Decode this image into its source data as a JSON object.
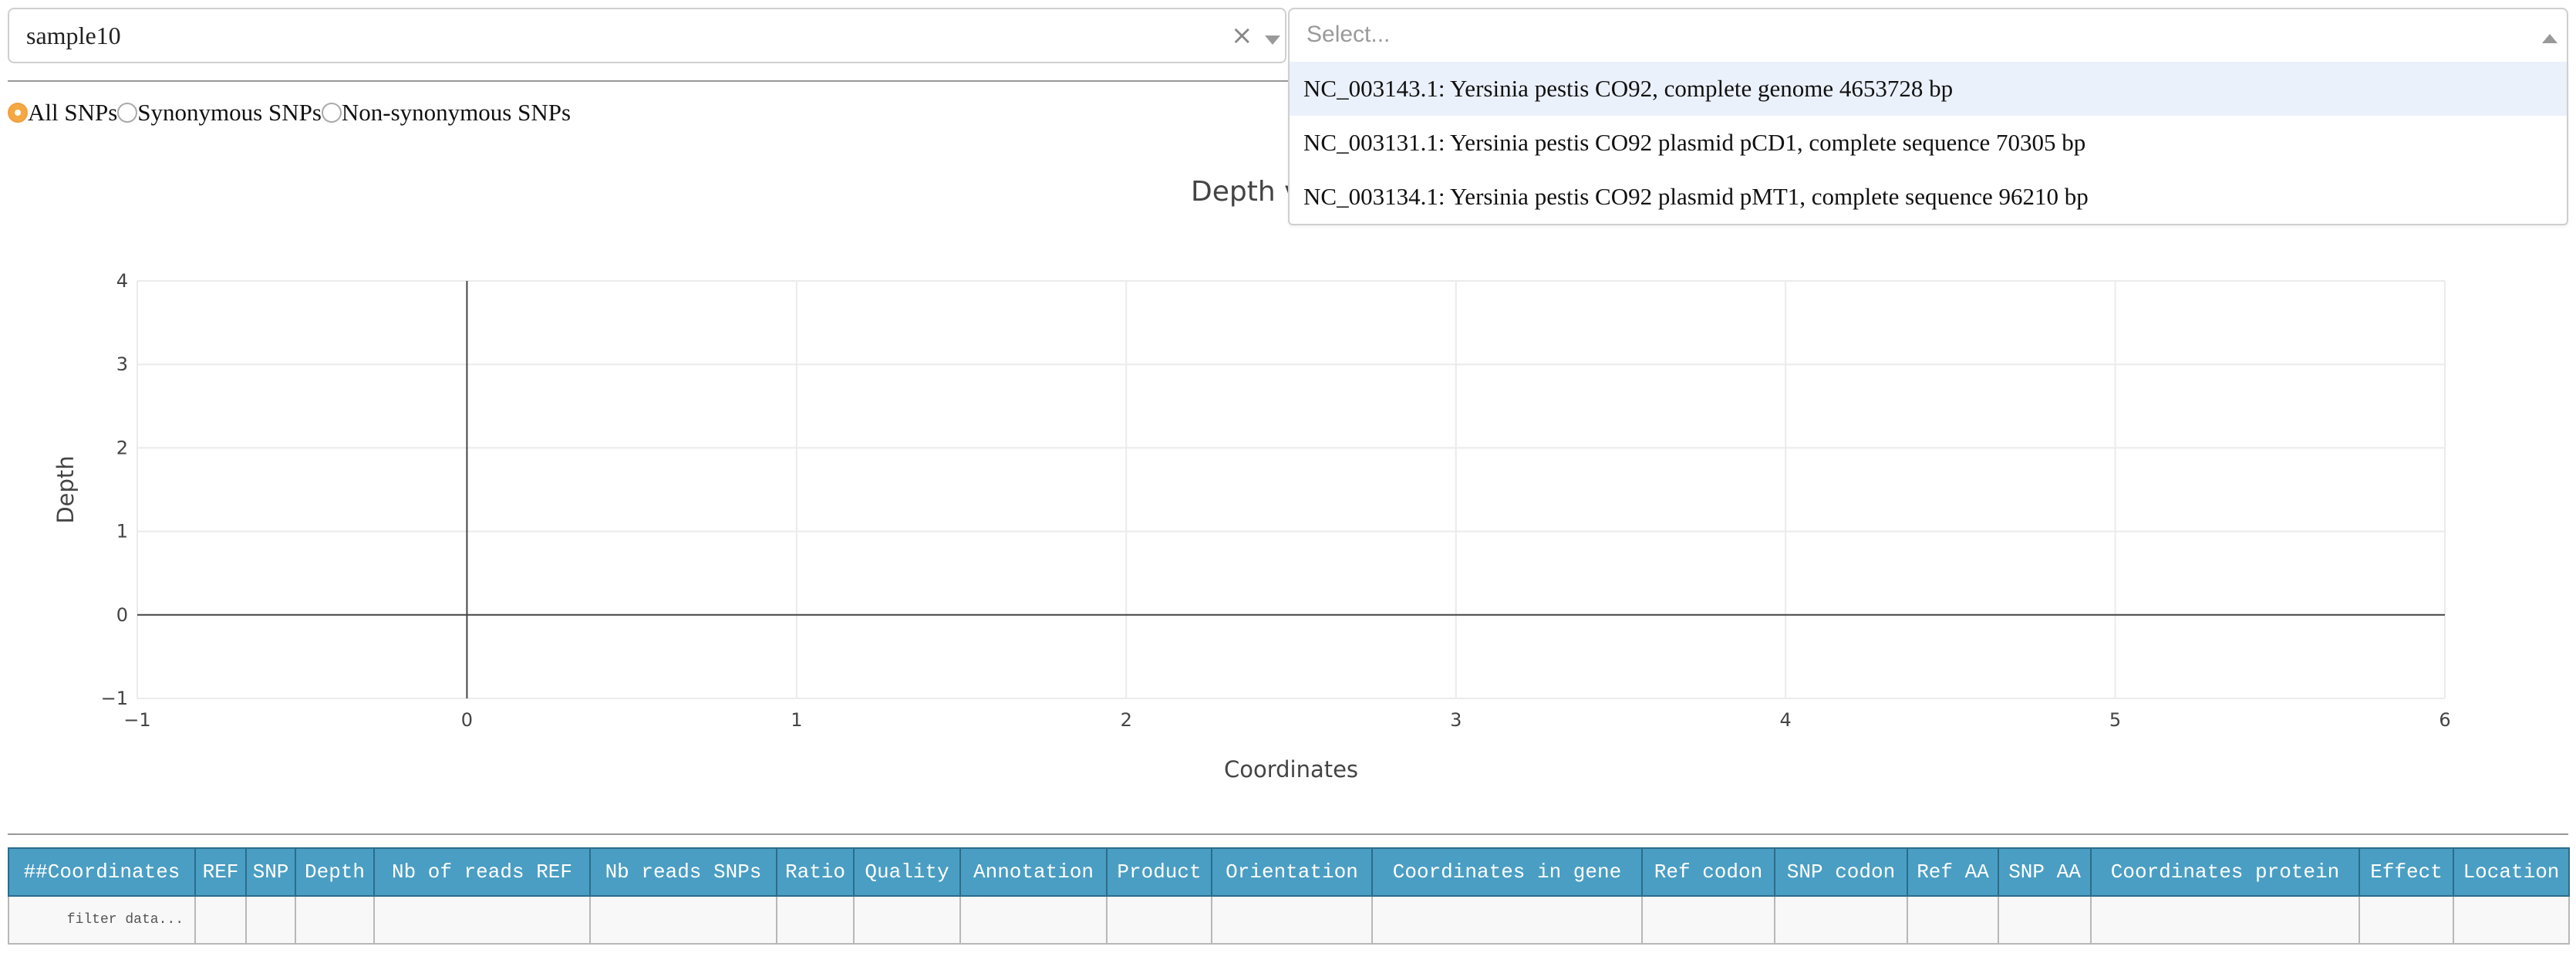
{
  "sample_select": {
    "value": "sample10",
    "clear_icon": "×",
    "caret_icon": "chevron-down-icon"
  },
  "genome_select": {
    "placeholder": "Select...",
    "caret_icon": "chevron-up-icon",
    "options": [
      {
        "label": "NC_003143.1: Yersinia pestis CO92, complete genome 4653728 bp",
        "highlighted": true
      },
      {
        "label": "NC_003131.1: Yersinia pestis CO92 plasmid pCD1, complete sequence 70305 bp",
        "highlighted": false
      },
      {
        "label": "NC_003134.1: Yersinia pestis CO92 plasmid pMT1, complete sequence 96210 bp",
        "highlighted": false
      }
    ]
  },
  "snp_filter": {
    "options": [
      {
        "label": "All SNPs",
        "checked": true
      },
      {
        "label": "Synonymous SNPs",
        "checked": false
      },
      {
        "label": "Non-synonymous SNPs",
        "checked": false
      }
    ]
  },
  "chart_data": {
    "type": "scatter",
    "title": "Depth v",
    "xlabel": "Coordinates",
    "ylabel": "Depth",
    "xlim": [
      -1,
      6
    ],
    "ylim": [
      -1,
      4
    ],
    "x_ticks": [
      "−1",
      "0",
      "1",
      "2",
      "3",
      "4",
      "5",
      "6"
    ],
    "y_ticks": [
      "−1",
      "0",
      "1",
      "2",
      "3",
      "4"
    ],
    "grid": true,
    "series": []
  },
  "table": {
    "columns": [
      "##Coordinates",
      "REF",
      "SNP",
      "Depth",
      "Nb of reads REF",
      "Nb reads SNPs",
      "Ratio",
      "Quality",
      "Annotation",
      "Product",
      "Orientation",
      "Coordinates in gene",
      "Ref codon",
      "SNP codon",
      "Ref AA",
      "SNP AA",
      "Coordinates protein",
      "Effect",
      "Location"
    ],
    "filter_placeholder": "filter data..."
  },
  "colors": {
    "table_header_bg": "#4a9ec3",
    "radio_checked": "#f5a742",
    "dropdown_highlight": "#ebf1fb"
  }
}
